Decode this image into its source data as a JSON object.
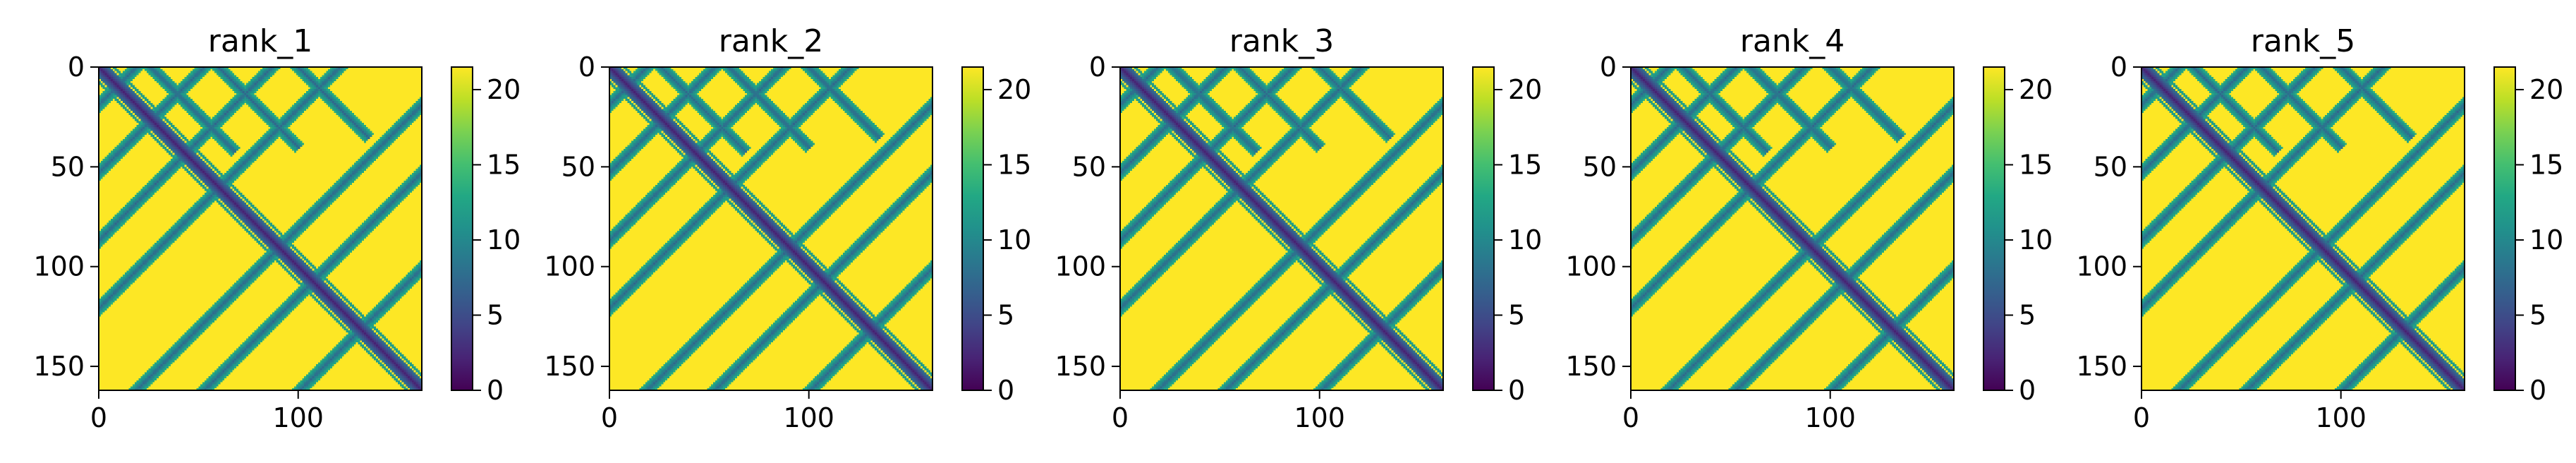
{
  "chart_data": [
    {
      "type": "heatmap",
      "title": "rank_1",
      "xlim": [
        0,
        162
      ],
      "ylim": [
        0,
        162
      ],
      "xticks": [
        0,
        100
      ],
      "yticks": [
        0,
        50,
        100,
        150
      ],
      "colorbar": {
        "min": 0,
        "max": 21.5,
        "ticks": [
          0,
          5,
          10,
          15,
          20
        ],
        "colormap": "viridis"
      },
      "grid": false
    },
    {
      "type": "heatmap",
      "title": "rank_2",
      "xlim": [
        0,
        162
      ],
      "ylim": [
        0,
        162
      ],
      "xticks": [
        0,
        100
      ],
      "yticks": [
        0,
        50,
        100,
        150
      ],
      "colorbar": {
        "min": 0,
        "max": 21.5,
        "ticks": [
          0,
          5,
          10,
          15,
          20
        ],
        "colormap": "viridis"
      },
      "grid": false
    },
    {
      "type": "heatmap",
      "title": "rank_3",
      "xlim": [
        0,
        162
      ],
      "ylim": [
        0,
        162
      ],
      "xticks": [
        0,
        100
      ],
      "yticks": [
        0,
        50,
        100,
        150
      ],
      "colorbar": {
        "min": 0,
        "max": 21.5,
        "ticks": [
          0,
          5,
          10,
          15,
          20
        ],
        "colormap": "viridis"
      },
      "grid": false
    },
    {
      "type": "heatmap",
      "title": "rank_4",
      "xlim": [
        0,
        162
      ],
      "ylim": [
        0,
        162
      ],
      "xticks": [
        0,
        100
      ],
      "yticks": [
        0,
        50,
        100,
        150
      ],
      "colorbar": {
        "min": 0,
        "max": 21.5,
        "ticks": [
          0,
          5,
          10,
          15,
          20
        ],
        "colormap": "viridis"
      },
      "grid": false
    },
    {
      "type": "heatmap",
      "title": "rank_5",
      "xlim": [
        0,
        162
      ],
      "ylim": [
        0,
        162
      ],
      "xticks": [
        0,
        100
      ],
      "yticks": [
        0,
        50,
        100,
        150
      ],
      "colorbar": {
        "min": 0,
        "max": 21.5,
        "ticks": [
          0,
          5,
          10,
          15,
          20
        ],
        "colormap": "viridis"
      },
      "grid": false
    }
  ]
}
